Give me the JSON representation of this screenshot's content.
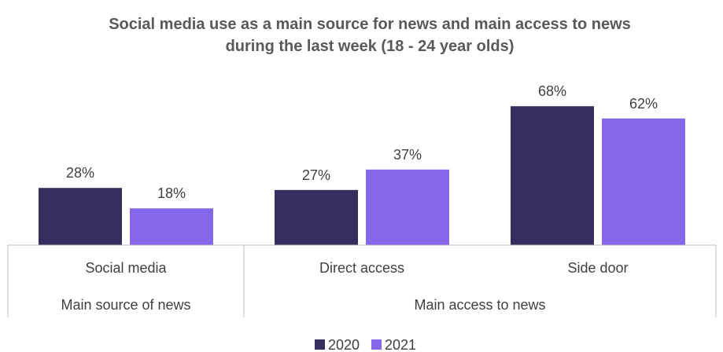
{
  "chart_data": {
    "type": "bar",
    "title_lines": [
      "Social media use as a main source for news and main access to news",
      "during the last week (18 - 24 year olds)"
    ],
    "categories": [
      "Social media",
      "Direct access",
      "Side door"
    ],
    "groups": [
      {
        "label": "Main source of news",
        "categories": [
          "Social media"
        ]
      },
      {
        "label": "Main access to news",
        "categories": [
          "Direct access",
          "Side door"
        ]
      }
    ],
    "series": [
      {
        "name": "2020",
        "values": [
          28,
          27,
          68
        ],
        "labels": [
          "28%",
          "27%",
          "68%"
        ],
        "color": "#372d5e"
      },
      {
        "name": "2021",
        "values": [
          18,
          37,
          62
        ],
        "labels": [
          "18%",
          "37%",
          "62%"
        ],
        "color": "#8467ea"
      }
    ],
    "ylim": [
      0,
      75
    ],
    "grid": false,
    "legend_position": "bottom"
  }
}
